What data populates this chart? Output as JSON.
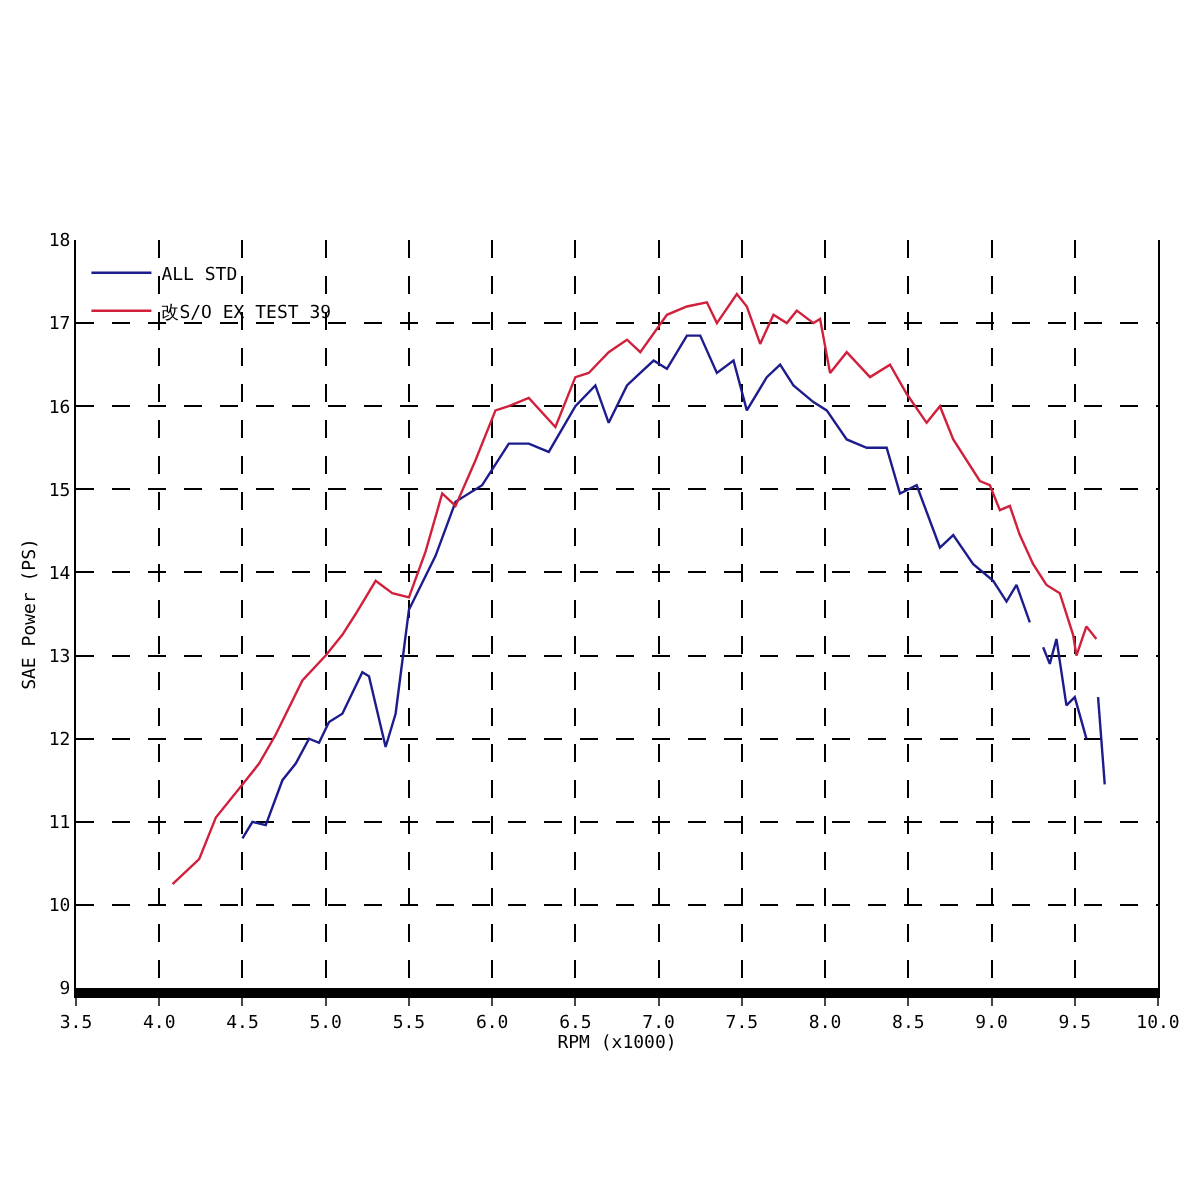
{
  "chart_data": {
    "type": "line",
    "xlabel": "RPM (x1000)",
    "ylabel": "SAE Power (PS)",
    "xlim": [
      3.5,
      10.0
    ],
    "xticks": [
      {
        "value": 3.5,
        "label": "3.5"
      },
      {
        "value": 4,
        "label": "4.0"
      },
      {
        "value": 4.5,
        "label": "4.5"
      },
      {
        "value": 5,
        "label": "5.0"
      },
      {
        "value": 5.5,
        "label": "5.5"
      },
      {
        "value": 6,
        "label": "6.0"
      },
      {
        "value": 6.5,
        "label": "6.5"
      },
      {
        "value": 7,
        "label": "7.0"
      },
      {
        "value": 7.5,
        "label": "7.5"
      },
      {
        "value": 8,
        "label": "8.0"
      },
      {
        "value": 8.5,
        "label": "8.5"
      },
      {
        "value": 9,
        "label": "9.0"
      },
      {
        "value": 9.5,
        "label": "9.5"
      },
      {
        "value": 10,
        "label": "10.0"
      }
    ],
    "ylim": [
      9,
      18
    ],
    "yticks": [
      9,
      10,
      11,
      12,
      13,
      14,
      15,
      16,
      17,
      18
    ],
    "grid": true,
    "legend": "top left",
    "marker": "none",
    "line_style": "solid",
    "series": [
      {
        "name": "ALL STD",
        "color": "#1c1c8c",
        "x": [
          4.5,
          4.56,
          4.64,
          4.74,
          4.82,
          4.9,
          4.96,
          5.02,
          5.1,
          5.22,
          5.26,
          5.36,
          5.42,
          5.5,
          5.66,
          5.78,
          5.94,
          6.1,
          6.22,
          6.34,
          6.5,
          6.62,
          6.7,
          6.81,
          6.89,
          6.97,
          7.05,
          7.17,
          7.25,
          7.35,
          7.45,
          7.53,
          7.65,
          7.73,
          7.81,
          7.93,
          8.01,
          8.13,
          8.25,
          8.37,
          8.45,
          8.55,
          8.69,
          8.77,
          8.89,
          9.01,
          9.09,
          9.15,
          9.23,
          9.27,
          9.31,
          9.35,
          9.39,
          9.45,
          9.5,
          9.57,
          9.6,
          9.64,
          9.68
        ],
        "values": [
          10.8,
          11.0,
          10.96,
          11.5,
          11.7,
          12.0,
          11.95,
          12.2,
          12.3,
          12.8,
          12.75,
          11.9,
          12.3,
          13.55,
          14.2,
          14.85,
          15.05,
          15.55,
          15.55,
          15.45,
          16.0,
          16.25,
          15.8,
          16.25,
          16.4,
          16.55,
          16.45,
          16.85,
          16.85,
          16.4,
          16.55,
          15.95,
          16.35,
          16.5,
          16.25,
          16.05,
          15.95,
          15.6,
          15.5,
          15.5,
          14.95,
          15.05,
          14.3,
          14.45,
          14.1,
          13.9,
          13.65,
          13.85,
          13.4,
          null,
          13.1,
          12.9,
          13.2,
          12.4,
          12.5,
          12.0,
          null,
          12.5,
          11.45
        ]
      },
      {
        "name": "改S/O EX TEST 39",
        "color": "#d0203c",
        "x": [
          4.08,
          4.24,
          4.34,
          4.5,
          4.6,
          4.7,
          4.86,
          5.0,
          5.1,
          5.18,
          5.3,
          5.4,
          5.5,
          5.6,
          5.7,
          5.78,
          5.9,
          6.02,
          6.1,
          6.22,
          6.38,
          6.5,
          6.58,
          6.7,
          6.81,
          6.89,
          7.05,
          7.17,
          7.29,
          7.35,
          7.47,
          7.53,
          7.61,
          7.69,
          7.77,
          7.83,
          7.93,
          7.97,
          8.03,
          8.13,
          8.27,
          8.39,
          8.49,
          8.61,
          8.69,
          8.77,
          8.93,
          8.99,
          9.05,
          9.11,
          9.17,
          9.25,
          9.33,
          9.41,
          9.49,
          9.51,
          9.57,
          9.63
        ],
        "values": [
          10.25,
          10.55,
          11.05,
          11.45,
          11.7,
          12.05,
          12.7,
          13.0,
          13.25,
          13.5,
          13.9,
          13.75,
          13.7,
          14.25,
          14.95,
          14.8,
          15.35,
          15.95,
          16.0,
          16.1,
          15.75,
          16.35,
          16.4,
          16.65,
          16.8,
          16.65,
          17.1,
          17.2,
          17.25,
          17.0,
          17.35,
          17.2,
          16.75,
          17.1,
          17.0,
          17.15,
          17.0,
          17.05,
          16.4,
          16.65,
          16.35,
          16.5,
          16.15,
          15.8,
          16.0,
          15.6,
          15.1,
          15.05,
          14.75,
          14.8,
          14.45,
          14.1,
          13.85,
          13.75,
          13.25,
          13.0,
          13.35,
          13.2
        ]
      }
    ]
  }
}
